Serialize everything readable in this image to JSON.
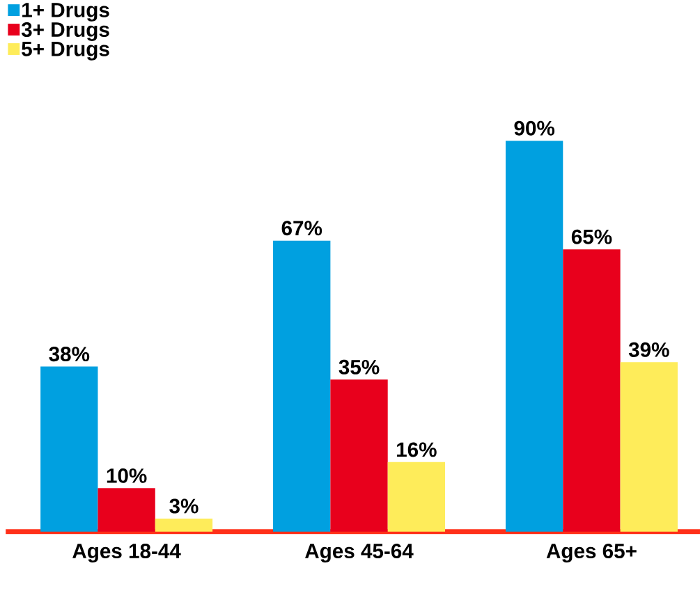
{
  "chart_data": {
    "type": "bar",
    "categories": [
      "Ages 18-44",
      "Ages 45-64",
      "Ages 65+"
    ],
    "series": [
      {
        "name": "1+ Drugs",
        "color": "#00a0e0",
        "values": [
          38,
          67,
          90
        ],
        "value_labels": [
          "38%",
          "67%",
          "90%"
        ]
      },
      {
        "name": "3+ Drugs",
        "color": "#e8001c",
        "values": [
          10,
          35,
          65
        ],
        "value_labels": [
          "10%",
          "35%",
          "65%"
        ]
      },
      {
        "name": "5+ Drugs",
        "color": "#feec5a",
        "values": [
          3,
          16,
          39
        ],
        "value_labels": [
          "3%",
          "16%",
          "39%"
        ]
      }
    ],
    "legend": "top left"
  }
}
